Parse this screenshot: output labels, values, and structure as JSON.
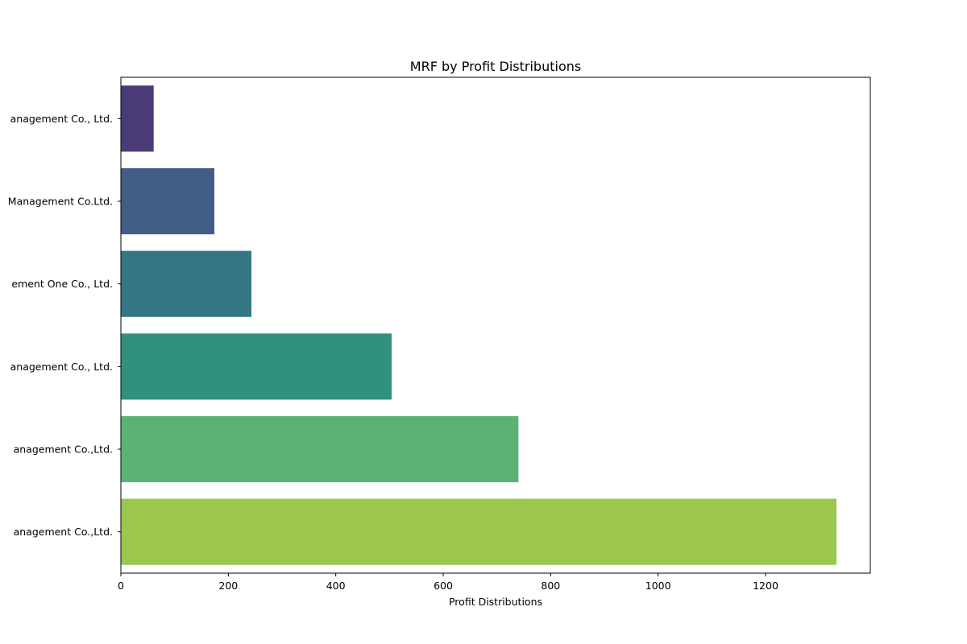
{
  "chart_data": {
    "type": "bar",
    "orientation": "horizontal",
    "title": "MRF by Profit Distributions",
    "xlabel": "Profit Distributions",
    "ylabel": "",
    "xlim": [
      0,
      1395
    ],
    "xticks": [
      0,
      200,
      400,
      600,
      800,
      1000,
      1200
    ],
    "grid": false,
    "categories": [
      "anagement Co., Ltd.",
      "Management Co.Ltd.",
      "ement One Co., Ltd.",
      "anagement Co., Ltd.",
      "anagement Co.,Ltd.",
      "anagement Co.,Ltd."
    ],
    "values": [
      61,
      174,
      243,
      504,
      740,
      1332
    ],
    "colors": [
      "#4a3b78",
      "#435e86",
      "#357684",
      "#31917f",
      "#5ab275",
      "#9bc74f"
    ]
  }
}
